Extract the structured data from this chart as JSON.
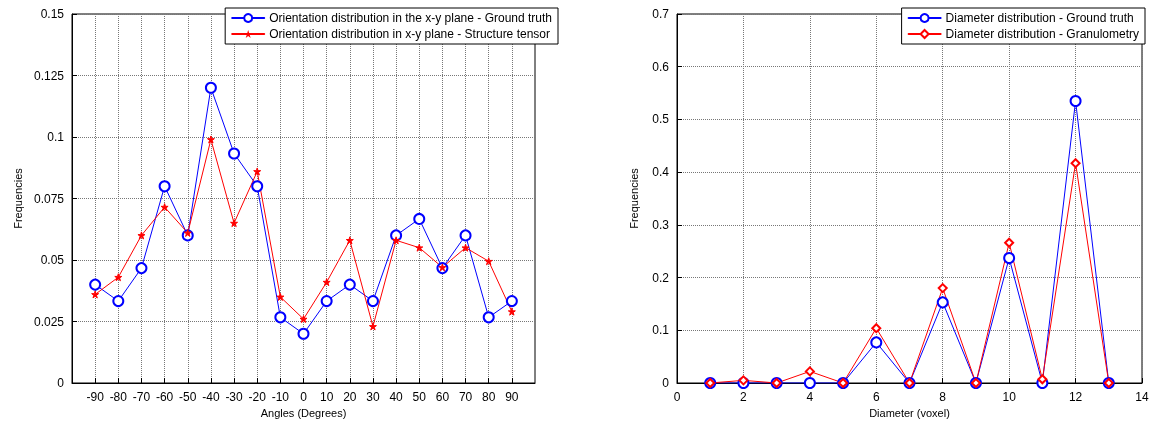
{
  "chart_data": [
    {
      "type": "line",
      "xlabel": "Angles (Degrees)",
      "ylabel": "Frequencies",
      "x": [
        -90,
        -80,
        -70,
        -60,
        -50,
        -40,
        -30,
        -20,
        -10,
        0,
        10,
        20,
        30,
        40,
        50,
        60,
        70,
        80,
        90
      ],
      "series": [
        {
          "name": "Orientation distribution in the x-y plane - Ground truth",
          "color": "#0000ff",
          "marker": "circle",
          "values": [
            0.04,
            0.0333,
            0.0467,
            0.08,
            0.06,
            0.12,
            0.0933,
            0.08,
            0.0267,
            0.02,
            0.0333,
            0.04,
            0.0333,
            0.06,
            0.0667,
            0.0467,
            0.06,
            0.0267,
            0.0333
          ]
        },
        {
          "name": "Orientation distribution in x-y plane - Structure tensor",
          "color": "#ff0000",
          "marker": "star",
          "values": [
            0.036,
            0.043,
            0.06,
            0.0715,
            0.061,
            0.099,
            0.065,
            0.086,
            0.035,
            0.026,
            0.041,
            0.058,
            0.023,
            0.058,
            0.055,
            0.047,
            0.055,
            0.0495,
            0.029
          ]
        }
      ],
      "xlim": [
        -100,
        100
      ],
      "xticks": [
        -90,
        -80,
        -70,
        -60,
        -50,
        -40,
        -30,
        -20,
        -10,
        0,
        10,
        20,
        30,
        40,
        50,
        60,
        70,
        80,
        90
      ],
      "ylim": [
        0,
        0.15
      ],
      "yticks": [
        0,
        0.025,
        0.05,
        0.075,
        0.1,
        0.125,
        0.15
      ],
      "grid": true,
      "legend": "top right",
      "line_style": "solid"
    },
    {
      "type": "line",
      "xlabel": "Diameter (voxel)",
      "ylabel": "Frequencies",
      "x": [
        1,
        2,
        3,
        4,
        5,
        6,
        7,
        8,
        9,
        10,
        11,
        12,
        13
      ],
      "series": [
        {
          "name": "Diameter distribution - Ground truth",
          "color": "#0000ff",
          "marker": "circle",
          "values": [
            0,
            0,
            0,
            0,
            0,
            0.077,
            0,
            0.153,
            0,
            0.237,
            0,
            0.535,
            0
          ]
        },
        {
          "name": "Diameter distribution - Granulometry",
          "color": "#ff0000",
          "marker": "diamond",
          "values": [
            0,
            0.005,
            0,
            0.022,
            0,
            0.104,
            0,
            0.18,
            0,
            0.266,
            0.007,
            0.417,
            0
          ]
        }
      ],
      "xlim": [
        0,
        14
      ],
      "xticks": [
        0,
        2,
        4,
        6,
        8,
        10,
        12,
        14
      ],
      "ylim": [
        0,
        0.7
      ],
      "yticks": [
        0,
        0.1,
        0.2,
        0.3,
        0.4,
        0.5,
        0.6,
        0.7
      ],
      "grid": true,
      "legend": "top right",
      "line_style": "solid"
    }
  ]
}
